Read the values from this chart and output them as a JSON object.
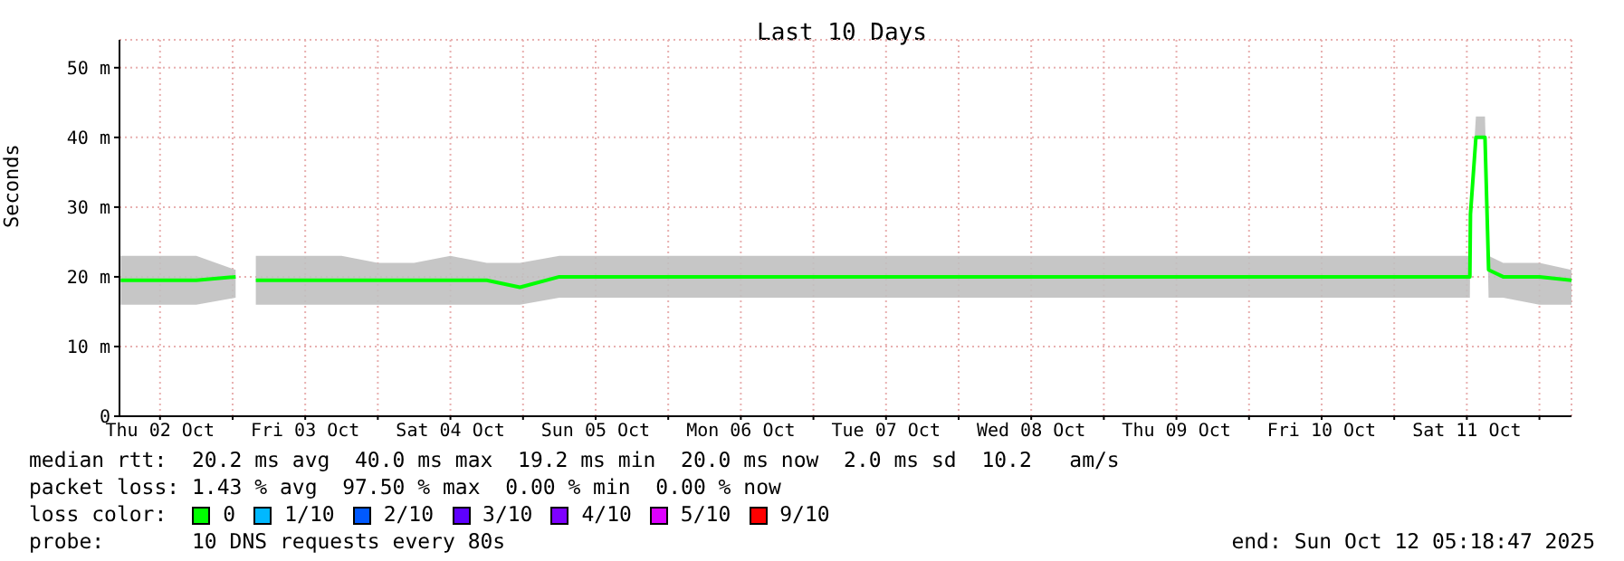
{
  "chart_data": {
    "type": "line",
    "title": "Last 10 Days",
    "ylabel": "Seconds",
    "legend_title": "loss color:",
    "legend": "bottom",
    "grid": true,
    "xlim": [
      "2025-10-02T05:18",
      "2025-10-12T05:18"
    ],
    "xticks": [
      {
        "value": "2025-10-02T12:00",
        "label": "Thu 02 Oct"
      },
      {
        "value": "2025-10-03T00:00",
        "label": null
      },
      {
        "value": "2025-10-03T12:00",
        "label": "Fri 03 Oct"
      },
      {
        "value": "2025-10-04T00:00",
        "label": null
      },
      {
        "value": "2025-10-04T12:00",
        "label": "Sat 04 Oct"
      },
      {
        "value": "2025-10-05T00:00",
        "label": null
      },
      {
        "value": "2025-10-05T12:00",
        "label": "Sun 05 Oct"
      },
      {
        "value": "2025-10-06T00:00",
        "label": null
      },
      {
        "value": "2025-10-06T12:00",
        "label": "Mon 06 Oct"
      },
      {
        "value": "2025-10-07T00:00",
        "label": null
      },
      {
        "value": "2025-10-07T12:00",
        "label": "Tue 07 Oct"
      },
      {
        "value": "2025-10-08T00:00",
        "label": null
      },
      {
        "value": "2025-10-08T12:00",
        "label": "Wed 08 Oct"
      },
      {
        "value": "2025-10-09T00:00",
        "label": null
      },
      {
        "value": "2025-10-09T12:00",
        "label": "Thu 09 Oct"
      },
      {
        "value": "2025-10-10T00:00",
        "label": null
      },
      {
        "value": "2025-10-10T12:00",
        "label": "Fri 10 Oct"
      },
      {
        "value": "2025-10-11T00:00",
        "label": null
      },
      {
        "value": "2025-10-11T12:00",
        "label": "Sat 11 Oct"
      },
      {
        "value": "2025-10-12T00:00",
        "label": null
      }
    ],
    "ylim": [
      0,
      54
    ],
    "yticks": [
      0,
      {
        "value": 10,
        "label": "10 m"
      },
      {
        "value": 20,
        "label": "20 m"
      },
      {
        "value": 30,
        "label": "30 m"
      },
      {
        "value": 40,
        "label": "40 m"
      },
      {
        "value": 50,
        "label": "50 m"
      }
    ],
    "x": [
      "2025-10-02T05:30",
      "2025-10-02T12:00",
      "2025-10-02T18:00",
      "2025-10-03T00:30",
      "2025-10-03T02:00",
      "2025-10-03T03:50",
      "2025-10-03T12:00",
      "2025-10-03T18:00",
      "2025-10-04T00:00",
      "2025-10-04T06:00",
      "2025-10-04T12:00",
      "2025-10-04T18:00",
      "2025-10-04T23:30",
      "2025-10-05T06:00",
      "2025-10-05T12:00",
      "2025-10-05T18:00",
      "2025-10-06T00:00",
      "2025-10-06T12:00",
      "2025-10-07T00:00",
      "2025-10-07T12:00",
      "2025-10-08T00:00",
      "2025-10-08T12:00",
      "2025-10-09T00:00",
      "2025-10-09T12:00",
      "2025-10-10T00:00",
      "2025-10-10T12:00",
      "2025-10-11T00:00",
      "2025-10-11T06:00",
      "2025-10-11T12:30",
      "2025-10-11T12:36",
      "2025-10-11T13:30",
      "2025-10-11T15:00",
      "2025-10-11T15:36",
      "2025-10-11T18:00",
      "2025-10-12T00:00",
      "2025-10-12T05:18"
    ],
    "series": [
      {
        "name": "0",
        "color": "#00ff00",
        "values": [
          19.5,
          19.5,
          19.5,
          20,
          null,
          19.5,
          19.5,
          19.5,
          19.5,
          19.5,
          19.5,
          19.5,
          18.5,
          20,
          20,
          20,
          20,
          20,
          20,
          20,
          20,
          20,
          20,
          20,
          20,
          20,
          20,
          20,
          20,
          29,
          40,
          40,
          21,
          20,
          20,
          19.5
        ],
        "lower": [
          16,
          16,
          16,
          17,
          null,
          16,
          16,
          16,
          16,
          16,
          16,
          16,
          16,
          17,
          17,
          17,
          17,
          17,
          17,
          17,
          17,
          17,
          17,
          17,
          17,
          17,
          17,
          17,
          17,
          29,
          40,
          40,
          17,
          17,
          16,
          16
        ],
        "upper": [
          23,
          23,
          23,
          21,
          null,
          23,
          23,
          23,
          22,
          22,
          23,
          22,
          22,
          23,
          23,
          23,
          23,
          23,
          23,
          23,
          23,
          23,
          23,
          23,
          23,
          23,
          23,
          23,
          23,
          30,
          43,
          43,
          23,
          22,
          22,
          21
        ]
      },
      {
        "name": "1/10",
        "color": "#00b8ff",
        "values": [
          null,
          null,
          null,
          null,
          null,
          null,
          null,
          null,
          null,
          null,
          null,
          null,
          null,
          null,
          null,
          null,
          null,
          null,
          null,
          null,
          null,
          null,
          null,
          null,
          null,
          null,
          null,
          null,
          null,
          null,
          null,
          null,
          null,
          null,
          null,
          null
        ]
      },
      {
        "name": "2/10",
        "color": "#0059ff",
        "values": [
          null,
          null,
          null,
          null,
          null,
          null,
          null,
          null,
          null,
          null,
          null,
          null,
          null,
          null,
          null,
          null,
          null,
          null,
          null,
          null,
          null,
          null,
          null,
          null,
          null,
          null,
          null,
          null,
          null,
          null,
          null,
          null,
          null,
          null,
          null,
          null
        ]
      },
      {
        "name": "3/10",
        "color": "#5e00ff",
        "values": [
          null,
          null,
          null,
          null,
          null,
          null,
          null,
          null,
          null,
          null,
          null,
          null,
          null,
          null,
          null,
          null,
          null,
          null,
          null,
          null,
          null,
          null,
          null,
          null,
          null,
          null,
          null,
          null,
          null,
          null,
          null,
          null,
          null,
          null,
          null,
          null
        ]
      },
      {
        "name": "4/10",
        "color": "#7e00ff",
        "values": [
          null,
          null,
          null,
          null,
          null,
          null,
          null,
          null,
          null,
          null,
          null,
          null,
          null,
          null,
          null,
          null,
          null,
          null,
          null,
          null,
          null,
          null,
          null,
          null,
          null,
          null,
          null,
          null,
          null,
          null,
          null,
          null,
          null,
          null,
          null,
          null
        ]
      },
      {
        "name": "5/10",
        "color": "#dd00ff",
        "values": [
          null,
          null,
          null,
          null,
          null,
          null,
          null,
          null,
          null,
          null,
          null,
          null,
          null,
          null,
          null,
          null,
          null,
          null,
          null,
          null,
          null,
          null,
          null,
          null,
          null,
          null,
          null,
          null,
          null,
          null,
          null,
          null,
          null,
          null,
          null,
          null
        ]
      },
      {
        "name": "9/10",
        "color": "#ff0000",
        "values": [
          null,
          null,
          null,
          null,
          null,
          null,
          null,
          null,
          null,
          null,
          null,
          null,
          null,
          null,
          null,
          null,
          null,
          null,
          null,
          null,
          null,
          null,
          null,
          null,
          null,
          null,
          null,
          null,
          null,
          null,
          null,
          null,
          null,
          null,
          null,
          null
        ]
      }
    ],
    "annotations": [
      "median rtt:  20.2 ms avg  40.0 ms max  19.2 ms min  20.0 ms now  2.0 ms sd  10.2   am/s",
      "packet loss: 1.43 % avg  97.50 % max  0.00 % min  0.00 % now",
      "probe:       10 DNS requests every 80s",
      "end: Sun Oct 12 05:18:47 2025"
    ]
  }
}
